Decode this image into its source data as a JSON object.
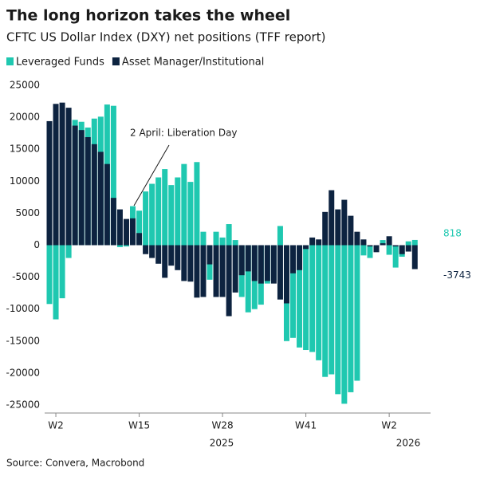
{
  "chart_data": {
    "type": "bar",
    "title": "The long horizon takes the wheel",
    "subtitle": "CFTC US Dollar Index (DXY) net positions (TFF report)",
    "source": "Source: Convera, Macrobond",
    "annotation": "2 April: Liberation Day",
    "year_labels": [
      "2025",
      "2026"
    ],
    "categories": [
      null,
      "W2",
      null,
      null,
      null,
      null,
      null,
      null,
      null,
      null,
      null,
      null,
      null,
      null,
      "W15",
      null,
      null,
      null,
      null,
      null,
      null,
      null,
      null,
      null,
      null,
      null,
      null,
      "W28",
      null,
      null,
      null,
      null,
      null,
      null,
      null,
      null,
      null,
      null,
      null,
      null,
      "W41",
      null,
      null,
      null,
      null,
      null,
      null,
      null,
      null,
      null,
      null,
      null,
      null,
      "W2",
      null,
      null,
      null,
      null
    ],
    "series": [
      {
        "name": "Leveraged Funds",
        "color": "#1fc8b0",
        "values": [
          -9200,
          -11600,
          -8300,
          -2000,
          19600,
          19300,
          18400,
          19800,
          20100,
          22000,
          21800,
          -300,
          -200,
          6100,
          5400,
          8400,
          9600,
          10600,
          11900,
          9400,
          10600,
          12700,
          9900,
          13000,
          2100,
          -5400,
          2100,
          1200,
          3300,
          800,
          -8100,
          -10500,
          -10000,
          -9300,
          -6000,
          -5500,
          3000,
          -15000,
          -14500,
          -16000,
          -16400,
          -16700,
          -18000,
          -20600,
          -20200,
          -23300,
          -24800,
          -23000,
          -21200,
          -1600,
          -2000,
          -200,
          800,
          -1500,
          -3500,
          -1800,
          600,
          818
        ],
        "value_labels": {
          "57": "818"
        }
      },
      {
        "name": "Asset Manager/Institutional",
        "color": "#0d2340",
        "values": [
          19400,
          22100,
          22300,
          21500,
          18700,
          18000,
          16900,
          15800,
          14600,
          12700,
          7400,
          5600,
          4100,
          4200,
          1900,
          -1400,
          -2000,
          -2900,
          -5100,
          -3200,
          -3900,
          -5600,
          -5700,
          -8200,
          -8100,
          -3000,
          -8100,
          -8100,
          -11100,
          -7400,
          -4700,
          -4100,
          -5600,
          -6000,
          -5600,
          -6000,
          -8500,
          -9100,
          -4400,
          -3900,
          -600,
          1200,
          900,
          5200,
          8600,
          5600,
          7100,
          4600,
          2100,
          900,
          -200,
          -1100,
          300,
          1400,
          -200,
          -1400,
          -1000,
          -3743
        ],
        "value_labels": {
          "57": "-3743"
        }
      }
    ],
    "ylim": [
      -26000,
      26500
    ],
    "yticks": [
      -25000,
      -20000,
      -15000,
      -10000,
      -5000,
      0,
      5000,
      10000,
      15000,
      20000,
      25000
    ],
    "grid": false
  }
}
